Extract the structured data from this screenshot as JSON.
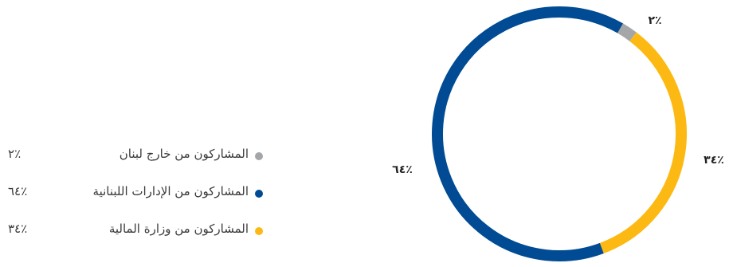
{
  "chart_data": {
    "type": "pie",
    "donut": true,
    "legend_position": "left",
    "slices": [
      {
        "label": "المشاركون من خارج لبنان",
        "value": 2,
        "value_label": "٪٢",
        "color": "#a4a6a8"
      },
      {
        "label": "المشاركون من وزارة المالية",
        "value": 34,
        "value_label": "٪٣٤",
        "color": "#fdb913"
      },
      {
        "label": "المشاركون من الإدارات اللبنانية",
        "value": 64,
        "value_label": "٪٦٤",
        "color": "#004b93"
      }
    ],
    "legend_order": [
      0,
      2,
      1
    ]
  }
}
